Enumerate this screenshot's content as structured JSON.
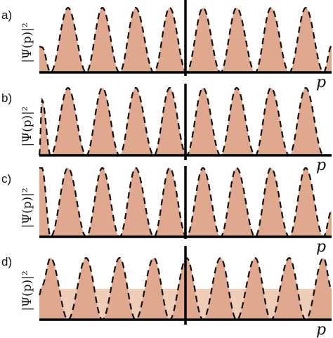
{
  "figure": {
    "colors": {
      "fill": "#dfa88f",
      "baseline_fill": "#efcdb9",
      "dashed_line": "#111111",
      "axis": "#000000"
    }
  },
  "chart_data": [
    {
      "type": "area",
      "panel_label": "a)",
      "ylabel": "|Ψ(p)|²",
      "xlabel": "p",
      "xlim": [
        0,
        1
      ],
      "ylim": [
        0,
        1
      ],
      "center_marker_x": 0.5,
      "series": [
        {
          "x": [
            0.0,
            0.009,
            0.0385,
            0.098,
            0.1605,
            0.2155,
            0.2745,
            0.3295,
            0.392,
            0.446,
            0.5035,
            0.56,
            0.62,
            0.675,
            0.7385,
            0.7925,
            0.855,
            0.9115,
            0.9725,
            1.0
          ],
          "y": [
            0.4,
            0.39,
            0.0,
            1.0,
            0.0,
            1.0,
            0.0,
            1.0,
            0.0,
            1.0,
            0.0,
            1.0,
            0.0,
            1.0,
            0.0,
            1.0,
            0.0,
            1.0,
            0.0,
            0.41
          ]
        }
      ]
    },
    {
      "type": "area",
      "panel_label": "b)",
      "ylabel": "|Ψ(p)|²",
      "xlabel": "p",
      "xlim": [
        0,
        1
      ],
      "ylim": [
        0,
        1
      ],
      "center_marker_x": 0.5,
      "series": [
        {
          "x": [
            0.0,
            0.009,
            0.0385,
            0.098,
            0.1605,
            0.2155,
            0.2745,
            0.3295,
            0.392,
            0.446,
            0.5035,
            0.56,
            0.62,
            0.675,
            0.7385,
            0.7925,
            0.855,
            0.9115,
            0.9725,
            1.0
          ],
          "y": [
            0.0,
            0.82,
            0.0,
            1.0,
            0.0,
            1.0,
            0.0,
            1.0,
            0.0,
            1.0,
            0.0,
            1.0,
            0.0,
            1.0,
            0.0,
            1.0,
            0.0,
            1.0,
            0.0,
            0.0
          ]
        }
      ]
    },
    {
      "type": "area",
      "panel_label": "c)",
      "ylabel": "|Ψ(p)|²",
      "xlabel": "p",
      "xlim": [
        0,
        1
      ],
      "ylim": [
        0,
        1
      ],
      "center_marker_x": 0.5,
      "series": [
        {
          "x": [
            0.0,
            0.009,
            0.0385,
            0.098,
            0.1605,
            0.2155,
            0.2745,
            0.3295,
            0.392,
            0.446,
            0.5035,
            0.56,
            0.62,
            0.675,
            0.7385,
            0.7925,
            0.855,
            0.9115,
            0.9725,
            1.0
          ],
          "y": [
            1.0,
            1.0,
            0.0,
            1.0,
            0.0,
            1.0,
            0.0,
            1.0,
            0.0,
            1.0,
            0.0,
            1.0,
            0.0,
            1.0,
            0.0,
            1.0,
            0.0,
            1.0,
            0.0,
            0.38
          ]
        }
      ]
    },
    {
      "type": "area",
      "panel_label": "d)",
      "ylabel": "|Ψ(p)|²",
      "xlabel": "p",
      "xlim": [
        0,
        1
      ],
      "ylim": [
        0,
        1
      ],
      "center_marker_x": 0.5,
      "baseline_band": 0.5,
      "series": [
        {
          "x": [
            0.0,
            0.009,
            0.0385,
            0.098,
            0.1605,
            0.2155,
            0.2745,
            0.3295,
            0.392,
            0.446,
            0.5035,
            0.56,
            0.62,
            0.675,
            0.7385,
            0.7925,
            0.855,
            0.9115,
            0.9725,
            1.0
          ],
          "y": [
            0.4,
            0.55,
            1.0,
            0.0,
            1.0,
            0.0,
            1.0,
            0.0,
            1.0,
            0.0,
            1.0,
            0.0,
            1.0,
            0.0,
            1.0,
            0.0,
            1.0,
            0.0,
            1.0,
            0.5
          ]
        }
      ]
    }
  ]
}
